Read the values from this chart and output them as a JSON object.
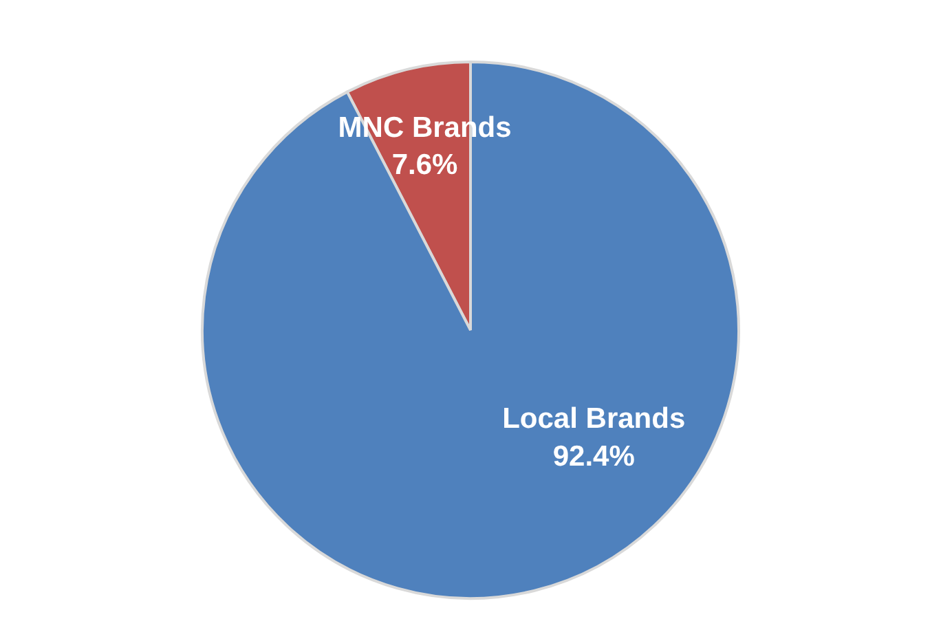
{
  "chart_data": {
    "type": "pie",
    "categories": [
      "MNC Brands",
      "Local Brands"
    ],
    "values": [
      7.6,
      92.4
    ],
    "value_labels": [
      "7.6%",
      "92.4%"
    ],
    "colors": [
      "#c0504d",
      "#4f81bd"
    ],
    "legend": false
  }
}
